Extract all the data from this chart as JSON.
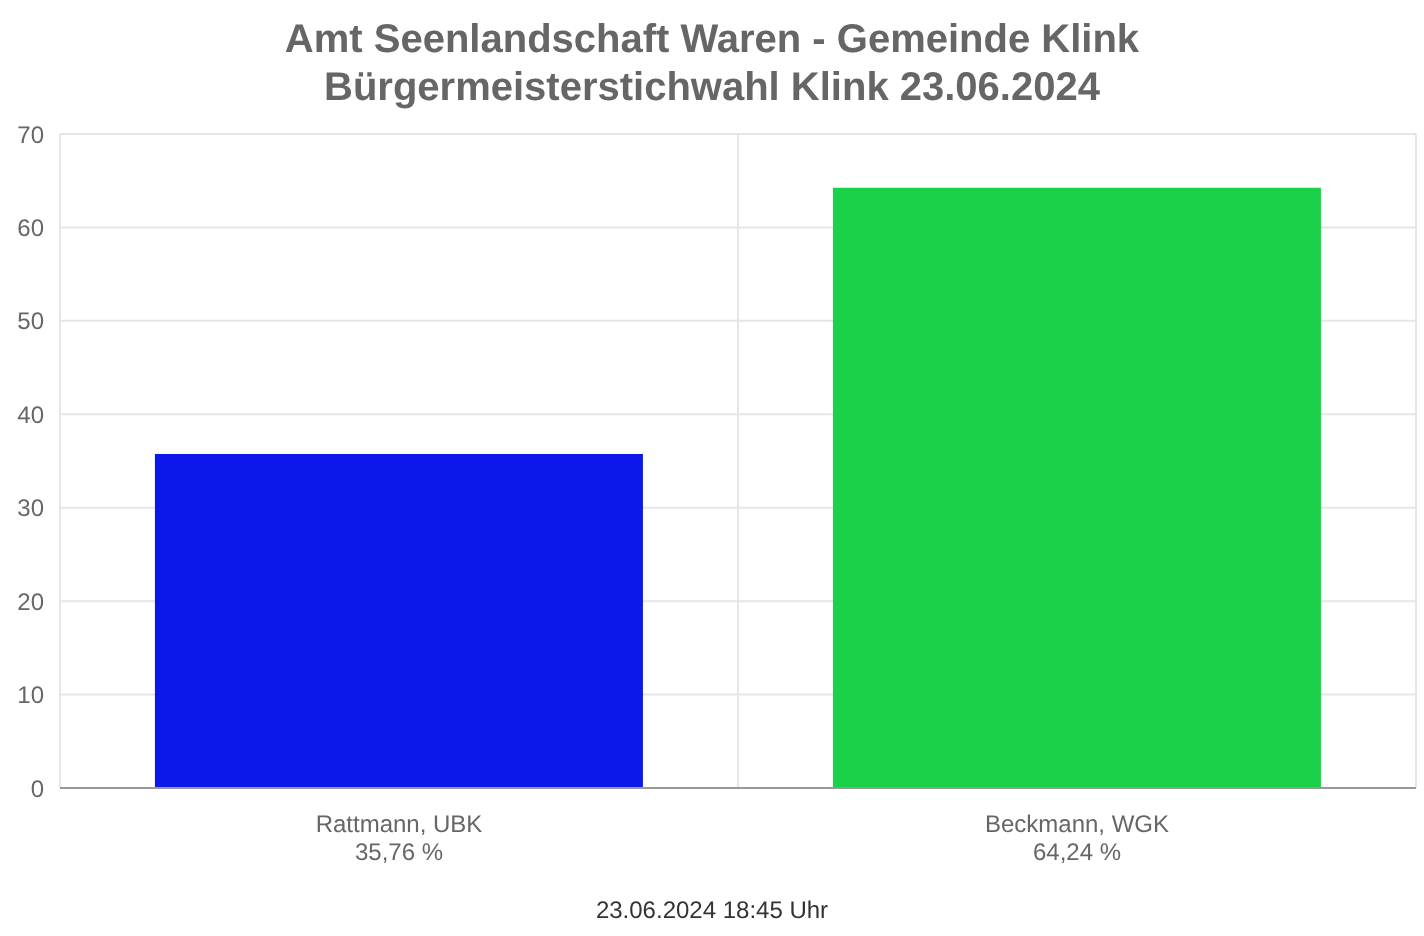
{
  "chart_data": {
    "type": "bar",
    "title": "Amt Seenlandschaft Waren - Gemeinde Klink",
    "subtitle": "Bürgermeisterstichwahl Klink 23.06.2024",
    "categories": [
      "Rattmann, UBK",
      "Beckmann, WGK"
    ],
    "values": [
      35.76,
      64.24
    ],
    "value_labels": [
      "35,76 %",
      "64,24 %"
    ],
    "colors": [
      "#0c17ea",
      "#1bd14a"
    ],
    "ylim": [
      0,
      70
    ],
    "yticks": [
      0,
      10,
      20,
      30,
      40,
      50,
      60,
      70
    ],
    "grid": true,
    "annotations": [
      "23.06.2024 18:45 Uhr"
    ]
  }
}
